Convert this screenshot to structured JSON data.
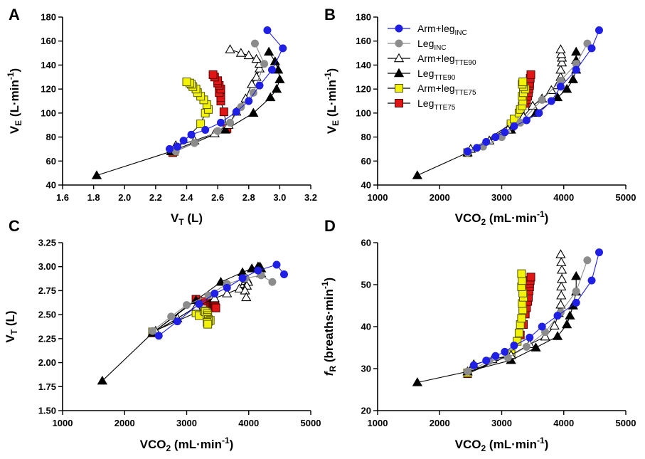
{
  "series_styles": [
    {
      "key": "arm_inc",
      "name": "Arm+leg",
      "sub": "INC",
      "marker": "circle",
      "fill": "#1f1fe6",
      "stroke": "#1f1fe6",
      "line": "#1f1fe6"
    },
    {
      "key": "leg_inc",
      "name": "Leg",
      "sub": "INC",
      "marker": "circle",
      "fill": "#8c8c8c",
      "stroke": "#8c8c8c",
      "line": "#8c8c8c"
    },
    {
      "key": "arm_tte90",
      "name": "Arm+leg",
      "sub": "TTE90",
      "marker": "triangle",
      "fill": "#ffffff",
      "stroke": "#000000",
      "line": "#000000"
    },
    {
      "key": "leg_tte90",
      "name": "Leg",
      "sub": "TTE90",
      "marker": "triangle",
      "fill": "#000000",
      "stroke": "#000000",
      "line": "#000000"
    },
    {
      "key": "arm_tte75",
      "name": "Arm+leg",
      "sub": "TTE75",
      "marker": "square",
      "fill": "#f2f20a",
      "stroke": "#555500",
      "line": "#000000"
    },
    {
      "key": "leg_tte75",
      "name": "Leg",
      "sub": "TTE75",
      "marker": "square",
      "fill": "#e01616",
      "stroke": "#550000",
      "line": "#000000"
    }
  ],
  "chart_data": [
    {
      "type": "scatter",
      "panel": "A",
      "xlabel": {
        "main": "V",
        "sub": "T",
        "rest": " (L)"
      },
      "ylabel": {
        "main": "V",
        "sub": "E",
        "rest": " (L·min",
        "sup": "-1",
        "end": ")"
      },
      "xlim": [
        1.6,
        3.2
      ],
      "ylim": [
        40,
        180
      ],
      "xticks": [
        "1.6",
        "1.8",
        "2.0",
        "2.2",
        "2.4",
        "2.6",
        "2.8",
        "3.0",
        "3.2"
      ],
      "yticks": [
        "40",
        "60",
        "80",
        "100",
        "120",
        "140",
        "160",
        "180"
      ],
      "series": [
        {
          "key": "arm_inc",
          "x": [
            2.29,
            2.34,
            2.38,
            2.43,
            2.52,
            2.62,
            2.72,
            2.8,
            2.87,
            2.95,
            3.02,
            2.92
          ],
          "y": [
            70,
            72,
            77,
            82,
            86,
            92,
            101,
            110,
            123,
            136,
            154,
            169
          ]
        },
        {
          "key": "leg_inc",
          "x": [
            2.33,
            2.45,
            2.6,
            2.68,
            2.75,
            2.83,
            2.9,
            2.84
          ],
          "y": [
            68,
            75,
            85,
            92,
            105,
            117,
            141,
            158
          ]
        },
        {
          "key": "arm_tte90",
          "x": [
            2.33,
            2.45,
            2.58,
            2.67,
            2.72,
            2.78,
            2.82,
            2.85,
            2.87,
            2.87,
            2.85,
            2.8,
            2.75,
            2.68
          ],
          "y": [
            73,
            77,
            83,
            90,
            101,
            112,
            124,
            130,
            137,
            141,
            145,
            148,
            150,
            153
          ]
        },
        {
          "key": "leg_tte90",
          "x": [
            1.82,
            2.3,
            2.65,
            2.83,
            2.94,
            2.98,
            3.0,
            2.99,
            2.97,
            2.93
          ],
          "y": [
            48,
            68,
            86,
            100,
            113,
            120,
            128,
            136,
            143,
            151
          ]
        },
        {
          "key": "arm_tte75",
          "x": [
            2.32,
            2.49,
            2.52,
            2.54,
            2.53,
            2.51,
            2.49,
            2.47,
            2.46,
            2.44,
            2.43,
            2.42,
            2.4
          ],
          "y": [
            68,
            91,
            100,
            103,
            107,
            111,
            114,
            117,
            120,
            122,
            124,
            125,
            126
          ]
        },
        {
          "key": "leg_tte75",
          "x": [
            2.31,
            2.66,
            2.64,
            2.62,
            2.62,
            2.61,
            2.62,
            2.61,
            2.6,
            2.6,
            2.58,
            2.57
          ],
          "y": [
            67,
            87,
            101,
            110,
            113,
            117,
            120,
            123,
            125,
            127,
            130,
            132
          ]
        }
      ]
    },
    {
      "type": "scatter",
      "panel": "B",
      "xlabel": {
        "main": "VCO",
        "sub": "2",
        "rest": " (mL·min",
        "sup": "-1",
        "end": ")"
      },
      "ylabel": {
        "main": "V",
        "sub": "E",
        "rest": " (L·min",
        "sup": "-1",
        "end": ")"
      },
      "xlim": [
        1000,
        5000
      ],
      "ylim": [
        40,
        180
      ],
      "xticks": [
        "1000",
        "2000",
        "3000",
        "4000",
        "5000"
      ],
      "yticks": [
        "40",
        "60",
        "80",
        "100",
        "120",
        "140",
        "160",
        "180"
      ],
      "series": [
        {
          "key": "arm_inc",
          "x": [
            2450,
            2600,
            2750,
            2900,
            3050,
            3200,
            3400,
            3600,
            3800,
            3950,
            4200,
            4450,
            4570
          ],
          "y": [
            68,
            71,
            76,
            80,
            84,
            89,
            94,
            100,
            110,
            122,
            136,
            154,
            169
          ]
        },
        {
          "key": "leg_inc",
          "x": [
            2450,
            2700,
            3000,
            3300,
            3650,
            3950,
            4200,
            4380
          ],
          "y": [
            67,
            72,
            80,
            92,
            111,
            127,
            141,
            158
          ]
        },
        {
          "key": "arm_tte90",
          "x": [
            2500,
            2800,
            3100,
            3350,
            3500,
            3650,
            3800,
            3900,
            3950,
            3950,
            3970,
            3970,
            3960,
            3950
          ],
          "y": [
            70,
            77,
            86,
            97,
            106,
            112,
            119,
            123,
            130,
            136,
            142,
            146,
            149,
            153
          ]
        },
        {
          "key": "leg_tte90",
          "x": [
            1640,
            2450,
            3150,
            3550,
            3900,
            4050,
            4150,
            4200,
            4200,
            4200
          ],
          "y": [
            48,
            67,
            86,
            100,
            113,
            120,
            128,
            136,
            144,
            151
          ]
        },
        {
          "key": "arm_tte75",
          "x": [
            2450,
            3150,
            3200,
            3280,
            3300,
            3330,
            3340,
            3330,
            3350,
            3380,
            3350,
            3330,
            3340
          ],
          "y": [
            67,
            91,
            95,
            100,
            103,
            106,
            110,
            114,
            117,
            120,
            122,
            124,
            126
          ]
        },
        {
          "key": "leg_tte75",
          "x": [
            2450,
            3150,
            3300,
            3380,
            3400,
            3420,
            3430,
            3440,
            3450,
            3450,
            3460,
            3470
          ],
          "y": [
            67,
            89,
            101,
            108,
            111,
            114,
            117,
            120,
            123,
            125,
            129,
            132
          ]
        }
      ]
    },
    {
      "type": "scatter",
      "panel": "C",
      "xlabel": {
        "main": "VCO",
        "sub": "2",
        "rest": " (mL·min",
        "sup": "-1",
        "end": ")"
      },
      "ylabel": {
        "main": "V",
        "sub": "T",
        "rest": " (L)"
      },
      "xlim": [
        1000,
        5000
      ],
      "ylim": [
        1.5,
        3.25
      ],
      "xticks": [
        "1000",
        "2000",
        "3000",
        "4000",
        "5000"
      ],
      "yticks": [
        "1.50",
        "1.75",
        "2.00",
        "2.25",
        "2.50",
        "2.75",
        "3.00",
        "3.25"
      ],
      "series": [
        {
          "key": "arm_inc",
          "x": [
            2550,
            2850,
            3200,
            3450,
            3650,
            3900,
            4150,
            4450,
            4570
          ],
          "y": [
            2.28,
            2.43,
            2.61,
            2.72,
            2.78,
            2.88,
            2.96,
            3.02,
            2.92
          ]
        },
        {
          "key": "leg_inc",
          "x": [
            2450,
            2750,
            3000,
            3350,
            3650,
            3950,
            4200,
            4380
          ],
          "y": [
            2.33,
            2.48,
            2.6,
            2.7,
            2.82,
            2.88,
            2.91,
            2.84
          ]
        },
        {
          "key": "arm_tte90",
          "x": [
            2500,
            2850,
            3150,
            3450,
            3650,
            3850,
            3930,
            3950,
            3970,
            3960,
            3990,
            3970,
            3940,
            3960
          ],
          "y": [
            2.33,
            2.46,
            2.58,
            2.67,
            2.72,
            2.77,
            2.82,
            2.85,
            2.87,
            2.87,
            2.84,
            2.8,
            2.75,
            2.68
          ]
        },
        {
          "key": "leg_tte90",
          "x": [
            1640,
            2450,
            3150,
            3550,
            3900,
            4050,
            4150,
            4180,
            4200,
            4200
          ],
          "y": [
            1.81,
            2.31,
            2.65,
            2.84,
            2.94,
            2.98,
            3.0,
            3.0,
            2.98,
            2.93
          ]
        },
        {
          "key": "arm_tte75",
          "x": [
            2450,
            3150,
            3200,
            3280,
            3300,
            3330,
            3340,
            3330,
            3350,
            3380,
            3350,
            3330,
            3340
          ],
          "y": [
            2.32,
            2.52,
            2.49,
            2.54,
            2.53,
            2.51,
            2.49,
            2.47,
            2.45,
            2.44,
            2.43,
            2.42,
            2.4
          ]
        },
        {
          "key": "leg_tte75",
          "x": [
            2450,
            3150,
            3300,
            3380,
            3400,
            3420,
            3430,
            3440,
            3450,
            3450,
            3460,
            3470
          ],
          "y": [
            2.31,
            2.66,
            2.64,
            2.62,
            2.62,
            2.61,
            2.62,
            2.61,
            2.6,
            2.6,
            2.58,
            2.57
          ]
        }
      ]
    },
    {
      "type": "scatter",
      "panel": "D",
      "xlabel": {
        "main": "VCO",
        "sub": "2",
        "rest": " (mL·min",
        "sup": "-1",
        "end": ")"
      },
      "ylabel": {
        "main": "f",
        "sub": "R",
        "rest": " (breaths·min",
        "sup": "-1",
        "end": ")",
        "italic": true
      },
      "xlim": [
        1000,
        5000
      ],
      "ylim": [
        20,
        60
      ],
      "xticks": [
        "1000",
        "2000",
        "3000",
        "4000",
        "5000"
      ],
      "yticks": [
        "20",
        "30",
        "40",
        "50",
        "60"
      ],
      "series": [
        {
          "key": "arm_inc",
          "x": [
            2550,
            2750,
            2900,
            3050,
            3200,
            3450,
            3650,
            3900,
            4200,
            4450,
            4570
          ],
          "y": [
            30.8,
            31.9,
            33.0,
            34.0,
            35.5,
            37.4,
            40.0,
            42.6,
            45.7,
            51.0,
            57.7
          ]
        },
        {
          "key": "leg_inc",
          "x": [
            2450,
            2800,
            3100,
            3400,
            3700,
            3950,
            4200,
            4380
          ],
          "y": [
            29.3,
            31.8,
            32.6,
            35.2,
            38.7,
            43.4,
            48.4,
            55.8
          ]
        },
        {
          "key": "arm_tte90",
          "x": [
            2550,
            2850,
            3150,
            3450,
            3700,
            3850,
            3920,
            3950,
            3960,
            3960,
            3970,
            3970,
            3960,
            3950
          ],
          "y": [
            31.0,
            32.2,
            33.2,
            35.8,
            37.6,
            40.2,
            43.2,
            45.2,
            47.4,
            49.5,
            51.3,
            53.5,
            55.3,
            57.2
          ]
        },
        {
          "key": "leg_tte90",
          "x": [
            1640,
            2450,
            3150,
            3550,
            3900,
            4050,
            4100,
            4150,
            4200,
            4200
          ],
          "y": [
            26.7,
            29.3,
            32.0,
            35.0,
            37.7,
            40.5,
            42.6,
            45.0,
            48.3,
            52.0
          ]
        },
        {
          "key": "arm_tte75",
          "x": [
            2450,
            3150,
            3250,
            3280,
            3300,
            3320,
            3340,
            3330,
            3350,
            3340,
            3320,
            3330,
            3320
          ],
          "y": [
            29.0,
            33.5,
            36.5,
            38.5,
            40.5,
            42.0,
            44.0,
            45.5,
            47.0,
            48.0,
            49.5,
            51.0,
            52.6
          ]
        },
        {
          "key": "leg_tte75",
          "x": [
            2450,
            3150,
            3300,
            3350,
            3380,
            3400,
            3420,
            3430,
            3440,
            3450,
            3450,
            3460,
            3470
          ],
          "y": [
            28.8,
            33.3,
            38.0,
            40.5,
            43.0,
            44.5,
            46.0,
            47.0,
            48.5,
            49.5,
            50.3,
            51.0,
            51.8
          ]
        }
      ]
    }
  ]
}
